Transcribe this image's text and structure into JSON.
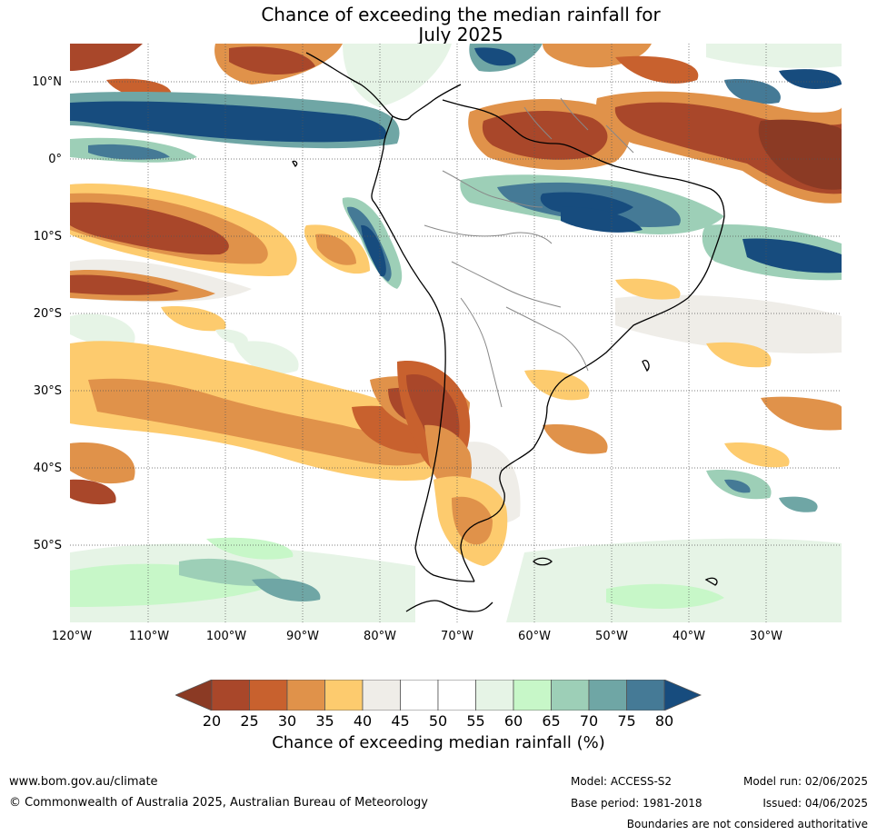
{
  "title_line1": "Chance of exceeding the median rainfall for",
  "title_line2": "July 2025",
  "lat_labels": [
    "10°N",
    "0°",
    "10°S",
    "20°S",
    "30°S",
    "40°S",
    "50°S"
  ],
  "lon_labels": [
    "120°W",
    "110°W",
    "100°W",
    "90°W",
    "80°W",
    "70°W",
    "60°W",
    "50°W",
    "40°W",
    "30°W"
  ],
  "colorbar": {
    "title": "Chance of exceeding median rainfall (%)",
    "ticks": [
      "20",
      "25",
      "30",
      "35",
      "40",
      "45",
      "50",
      "55",
      "60",
      "65",
      "70",
      "75",
      "80"
    ],
    "colors": [
      "#8b3a24",
      "#a9472a",
      "#c8612e",
      "#e0924a",
      "#fdcb6e",
      "#efede8",
      "#ffffff",
      "#ffffff",
      "#e6f4e6",
      "#c7f7c8",
      "#9dcfb7",
      "#6fa6a5",
      "#457a96",
      "#174c7e"
    ]
  },
  "footer": {
    "website": "www.bom.gov.au/climate",
    "copyright": "© Commonwealth of Australia 2025, Australian Bureau of Meteorology",
    "model": "Model: ACCESS-S2",
    "base_period": "Base period: 1981-2018",
    "model_run": "Model run: 02/06/2025",
    "issued": "Issued: 04/06/2025",
    "disclaimer": "Boundaries are not considered authoritative"
  }
}
